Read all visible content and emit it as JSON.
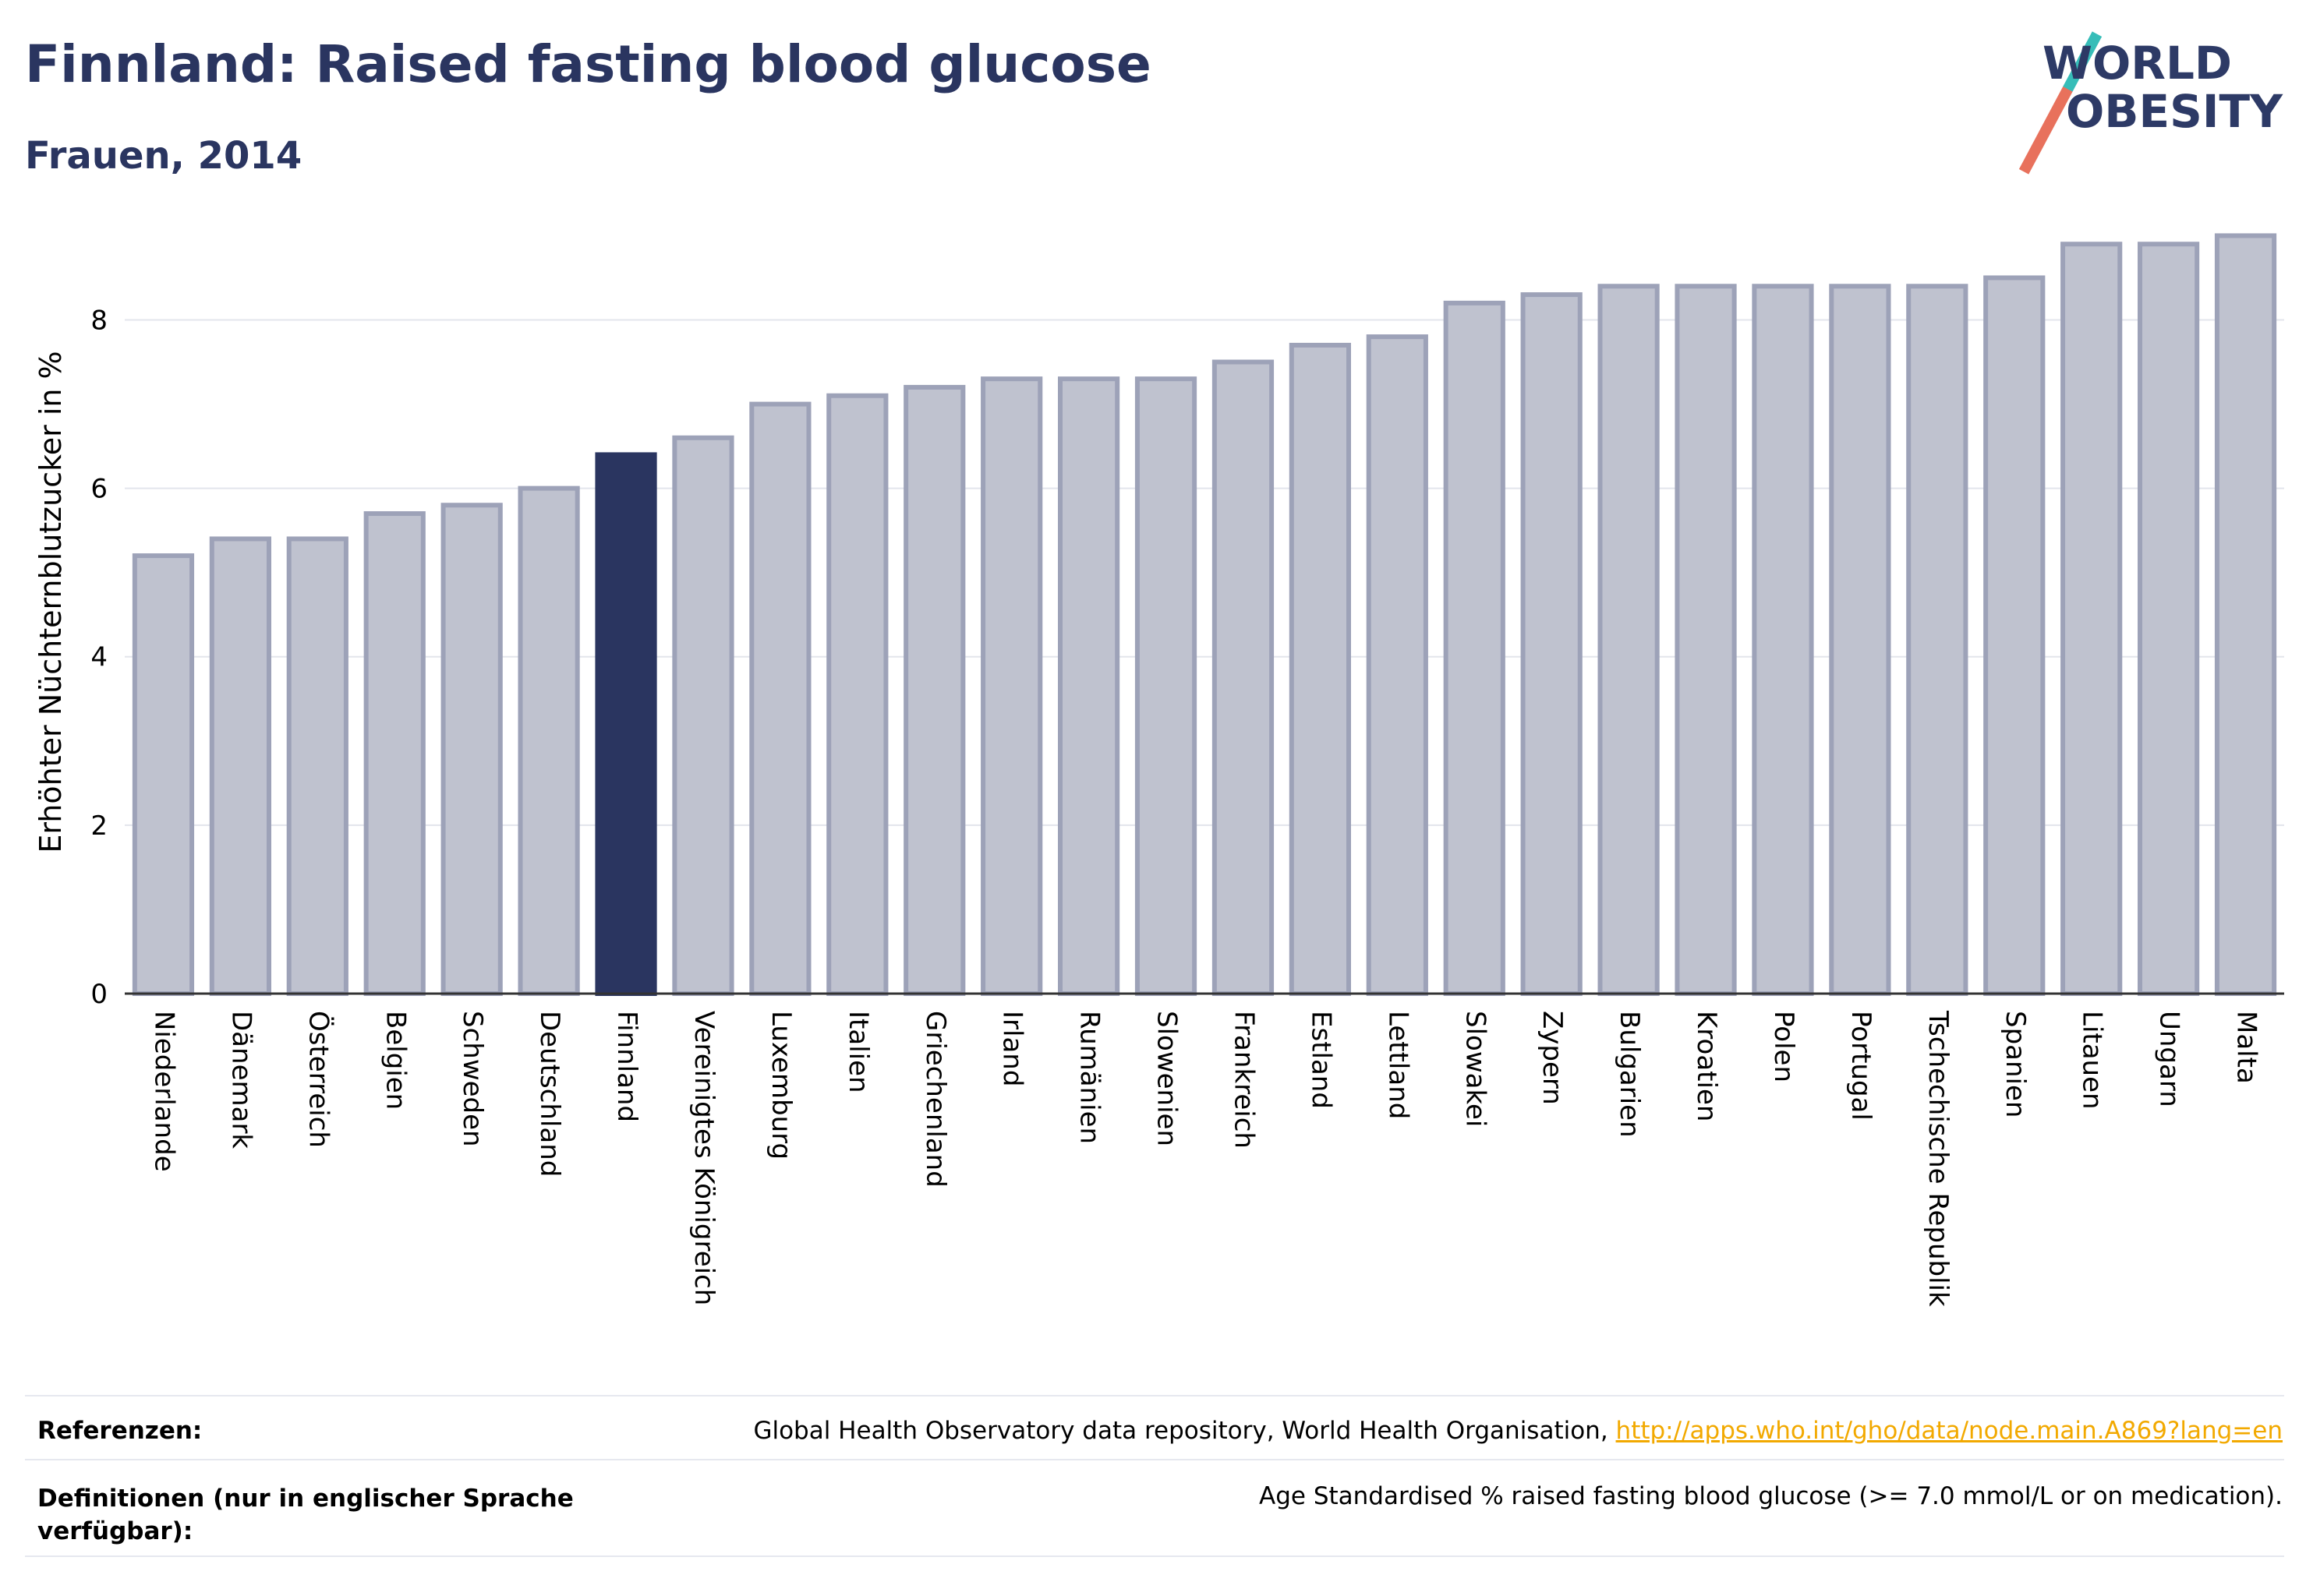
{
  "header": {
    "title": "Finnland: Raised fasting blood glucose",
    "subtitle": "Frauen, 2014"
  },
  "logo": {
    "line1": "WORLD",
    "line2": "OBESITY",
    "colors": {
      "text": "#2d3a66",
      "teal": "#36bdb8",
      "coral": "#e8715c"
    }
  },
  "chart_data": {
    "type": "bar",
    "title": "Finnland: Raised fasting blood glucose",
    "subtitle": "Frauen, 2014",
    "xlabel": "",
    "ylabel": "Erhöhter Nüchternblutzucker in %",
    "ylim": [
      0,
      9.3
    ],
    "yticks": [
      0,
      2,
      4,
      6,
      8
    ],
    "grid": true,
    "highlight": "Finnland",
    "colors": {
      "bar": "#bfc2cf",
      "bar_border": "#9da2b8",
      "highlight": "#2a3560"
    },
    "categories": [
      "Niederlande",
      "Dänemark",
      "Österreich",
      "Belgien",
      "Schweden",
      "Deutschland",
      "Finnland",
      "Vereinigtes Königreich",
      "Luxemburg",
      "Italien",
      "Griechenland",
      "Irland",
      "Rumänien",
      "Slowenien",
      "Frankreich",
      "Estland",
      "Lettland",
      "Slowakei",
      "Zypern",
      "Bulgarien",
      "Kroatien",
      "Polen",
      "Portugal",
      "Tschechische Republik",
      "Spanien",
      "Litauen",
      "Ungarn",
      "Malta"
    ],
    "values": [
      5.2,
      5.4,
      5.4,
      5.7,
      5.8,
      6.0,
      6.4,
      6.6,
      7.0,
      7.1,
      7.2,
      7.3,
      7.3,
      7.3,
      7.5,
      7.7,
      7.8,
      8.2,
      8.3,
      8.4,
      8.4,
      8.4,
      8.4,
      8.4,
      8.5,
      8.9,
      8.9,
      9.0
    ]
  },
  "footer": {
    "references_label": "Referenzen:",
    "references_text": "Global Health Observatory data repository, World Health Organisation, ",
    "references_link": "http://apps.who.int/gho/data/node.main.A869?lang=en",
    "definitions_label_line1": "Definitionen (nur in englischer Sprache",
    "definitions_label_line2": "verfügbar):",
    "definitions_text": "Age Standardised % raised fasting blood glucose (>= 7.0 mmol/L or on medication)."
  }
}
